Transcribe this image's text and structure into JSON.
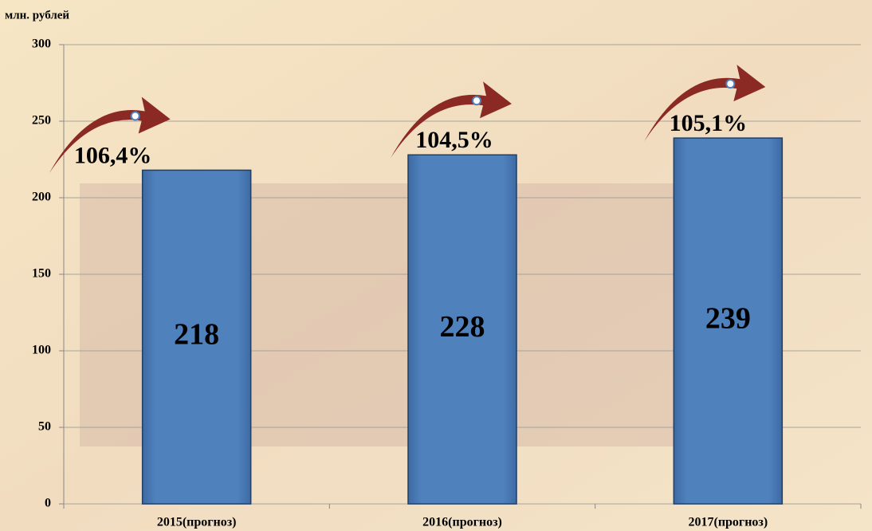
{
  "chart_data": {
    "type": "bar",
    "y_label": "млн. рублей",
    "categories": [
      "2015(прогноз)",
      "2016(прогноз)",
      "2017(прогноз)"
    ],
    "values": [
      218,
      228,
      239
    ],
    "color": "#4f81bd",
    "annotations": [
      "106,4%",
      "104,5%",
      "105,1%"
    ],
    "ylim": [
      0,
      300
    ],
    "yticks": [
      0,
      50,
      100,
      150,
      200,
      250,
      300
    ],
    "grid": true
  }
}
